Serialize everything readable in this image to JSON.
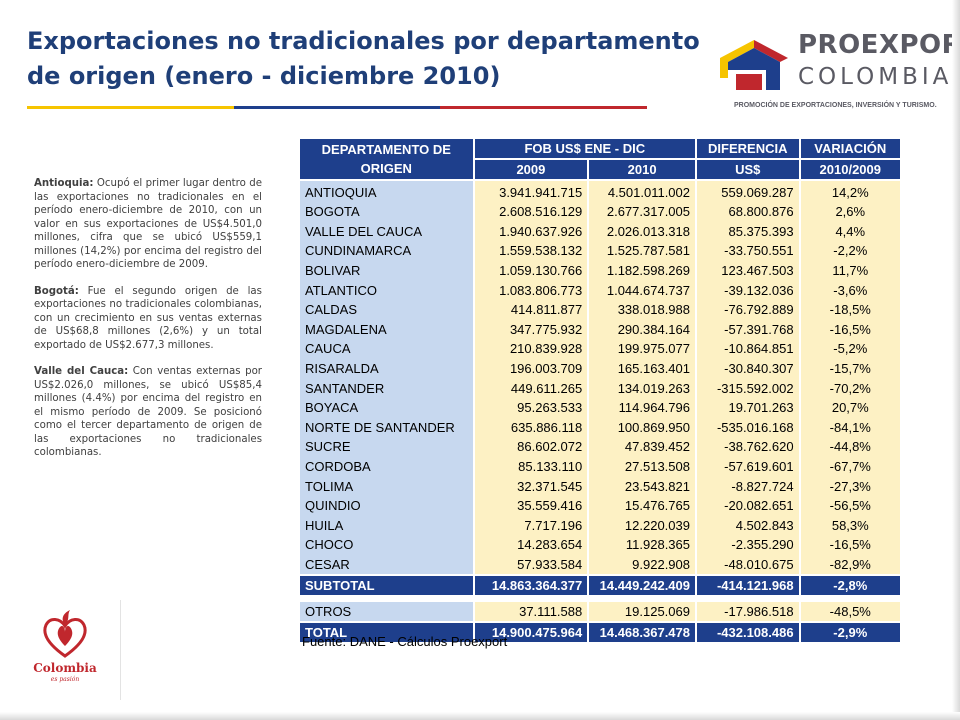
{
  "title": "Exportaciones no tradicionales por departamento de origen (enero - diciembre 2010)",
  "colors": {
    "title": "#1f3f78",
    "header_bg": "#1e3f8c",
    "dept_bg": "#c7d8ef",
    "value_bg": "#fdf1c4",
    "bar": [
      "#f6c400",
      "#1e3f8c",
      "#c0272d"
    ]
  },
  "logo": {
    "word1": "PROEXPORT",
    "word2": "COLOMBIA",
    "tagline": "PROMOCIÓN DE EXPORTACIONES, INVERSIÓN Y TURISMO."
  },
  "left_text": {
    "p1_lead": "Antioquia:",
    "p1_body": " Ocupó el primer lugar dentro de las exportaciones no tradicionales en el período enero-diciembre de 2010, con un valor en sus exportaciones de US$4.501,0 millones, cifra que se ubicó US$559,1 millones (14,2%) por encima del registro del período enero-diciembre de 2009.",
    "p2_lead": "Bogotá:",
    "p2_body": " Fue el segundo origen de las exportaciones no tradicionales colombianas, con un crecimiento en sus ventas externas de US$68,8 millones (2,6%) y un total exportado de US$2.677,3 millones.",
    "p3_lead": "Valle del Cauca:",
    "p3_body": " Con ventas externas por US$2.026,0 millones, se ubicó US$85,4 millones (4.4%) por encima del registro en el mismo período de 2009. Se posicionó como el tercer departamento de origen de las exportaciones no tradicionales colombianas."
  },
  "colombia_logo": {
    "word": "Colombia",
    "tagline": "es pasión"
  },
  "table": {
    "headers": {
      "dept": "DEPARTAMENTO DE ORIGEN",
      "fob": "FOB US$ ENE - DIC",
      "dif": "DIFERENCIA",
      "var": "VARIACIÓN",
      "y2009": "2009",
      "y2010": "2010",
      "usd": "US$",
      "var_period": "2010/2009"
    },
    "rows": [
      [
        "ANTIOQUIA",
        "3.941.941.715",
        "4.501.011.002",
        "559.069.287",
        "14,2%"
      ],
      [
        "BOGOTA",
        "2.608.516.129",
        "2.677.317.005",
        "68.800.876",
        "2,6%"
      ],
      [
        "VALLE DEL CAUCA",
        "1.940.637.926",
        "2.026.013.318",
        "85.375.393",
        "4,4%"
      ],
      [
        "CUNDINAMARCA",
        "1.559.538.132",
        "1.525.787.581",
        "-33.750.551",
        "-2,2%"
      ],
      [
        "BOLIVAR",
        "1.059.130.766",
        "1.182.598.269",
        "123.467.503",
        "11,7%"
      ],
      [
        "ATLANTICO",
        "1.083.806.773",
        "1.044.674.737",
        "-39.132.036",
        "-3,6%"
      ],
      [
        "CALDAS",
        "414.811.877",
        "338.018.988",
        "-76.792.889",
        "-18,5%"
      ],
      [
        "MAGDALENA",
        "347.775.932",
        "290.384.164",
        "-57.391.768",
        "-16,5%"
      ],
      [
        "CAUCA",
        "210.839.928",
        "199.975.077",
        "-10.864.851",
        "-5,2%"
      ],
      [
        "RISARALDA",
        "196.003.709",
        "165.163.401",
        "-30.840.307",
        "-15,7%"
      ],
      [
        "SANTANDER",
        "449.611.265",
        "134.019.263",
        "-315.592.002",
        "-70,2%"
      ],
      [
        "BOYACA",
        "95.263.533",
        "114.964.796",
        "19.701.263",
        "20,7%"
      ],
      [
        "NORTE DE SANTANDER",
        "635.886.118",
        "100.869.950",
        "-535.016.168",
        "-84,1%"
      ],
      [
        "SUCRE",
        "86.602.072",
        "47.839.452",
        "-38.762.620",
        "-44,8%"
      ],
      [
        "CORDOBA",
        "85.133.110",
        "27.513.508",
        "-57.619.601",
        "-67,7%"
      ],
      [
        "TOLIMA",
        "32.371.545",
        "23.543.821",
        "-8.827.724",
        "-27,3%"
      ],
      [
        "QUINDIO",
        "35.559.416",
        "15.476.765",
        "-20.082.651",
        "-56,5%"
      ],
      [
        "HUILA",
        "7.717.196",
        "12.220.039",
        "4.502.843",
        "58,3%"
      ],
      [
        "CHOCO",
        "14.283.654",
        "11.928.365",
        "-2.355.290",
        "-16,5%"
      ],
      [
        "CESAR",
        "57.933.584",
        "9.922.908",
        "-48.010.675",
        "-82,9%"
      ]
    ],
    "subtotal": [
      "SUBTOTAL",
      "14.863.364.377",
      "14.449.242.409",
      "-414.121.968",
      "-2,8%"
    ],
    "otros": [
      "OTROS",
      "37.111.588",
      "19.125.069",
      "-17.986.518",
      "-48,5%"
    ],
    "total": [
      "TOTAL",
      "14.900.475.964",
      "14.468.367.478",
      "-432.108.486",
      "-2,9%"
    ]
  },
  "source": "Fuente: DANE - Cálculos Proexport"
}
